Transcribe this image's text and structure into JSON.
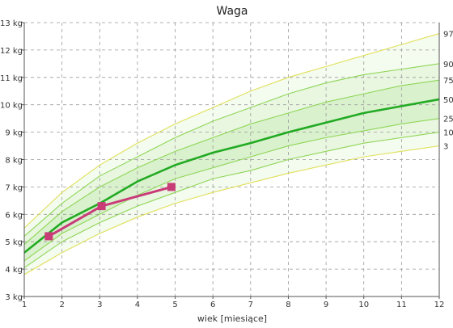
{
  "chart_data": {
    "type": "line",
    "title": "Waga",
    "xlabel": "wiek [miesiące]",
    "ylabel": "",
    "xlim": [
      1,
      12
    ],
    "ylim": [
      3,
      13
    ],
    "x_ticks": [
      1,
      2,
      3,
      4,
      5,
      6,
      7,
      8,
      9,
      10,
      11,
      12
    ],
    "y_ticks": [
      {
        "value": 3,
        "label": "3 kg"
      },
      {
        "value": 4,
        "label": "4 kg"
      },
      {
        "value": 5,
        "label": "5 kg"
      },
      {
        "value": 6,
        "label": "6 kg"
      },
      {
        "value": 7,
        "label": "7 kg"
      },
      {
        "value": 8,
        "label": "8 kg"
      },
      {
        "value": 9,
        "label": "9 kg"
      },
      {
        "value": 10,
        "label": "10 kg"
      },
      {
        "value": 11,
        "label": "11 kg"
      },
      {
        "value": 12,
        "label": "12 kg"
      },
      {
        "value": 13,
        "label": "13 kg"
      }
    ],
    "grid": true,
    "percentile_x": [
      1,
      2,
      3,
      4,
      5,
      6,
      7,
      8,
      9,
      10,
      11,
      12
    ],
    "percentiles": [
      {
        "label": "97",
        "values": [
          5.5,
          6.8,
          7.8,
          8.6,
          9.3,
          9.9,
          10.5,
          11.0,
          11.4,
          11.8,
          12.2,
          12.6
        ],
        "color": "#e0e05a"
      },
      {
        "label": "90",
        "values": [
          5.2,
          6.4,
          7.4,
          8.1,
          8.8,
          9.4,
          9.9,
          10.4,
          10.8,
          11.1,
          11.3,
          11.5
        ],
        "color": "#8fd657"
      },
      {
        "label": "75",
        "values": [
          4.9,
          6.1,
          7.0,
          7.7,
          8.3,
          8.8,
          9.3,
          9.7,
          10.1,
          10.4,
          10.7,
          10.9
        ],
        "color": "#8fd657"
      },
      {
        "label": "50",
        "values": [
          4.6,
          5.7,
          6.4,
          7.2,
          7.8,
          8.25,
          8.6,
          9.0,
          9.35,
          9.7,
          9.95,
          10.2
        ],
        "color": "#22aa22"
      },
      {
        "label": "25",
        "values": [
          4.3,
          5.3,
          6.0,
          6.7,
          7.3,
          7.7,
          8.1,
          8.5,
          8.8,
          9.05,
          9.3,
          9.5
        ],
        "color": "#8fd657"
      },
      {
        "label": "10",
        "values": [
          4.05,
          5.0,
          5.7,
          6.3,
          6.8,
          7.3,
          7.6,
          8.0,
          8.3,
          8.6,
          8.8,
          9.0
        ],
        "color": "#8fd657"
      },
      {
        "label": "3",
        "values": [
          3.8,
          4.6,
          5.3,
          5.9,
          6.4,
          6.8,
          7.15,
          7.5,
          7.8,
          8.1,
          8.3,
          8.5
        ],
        "color": "#e0e05a"
      }
    ],
    "series": [
      {
        "name": "",
        "x": [
          1.65,
          3.05,
          4.9
        ],
        "values": [
          5.2,
          6.3,
          7.0
        ],
        "color": "#c83c78"
      }
    ]
  }
}
